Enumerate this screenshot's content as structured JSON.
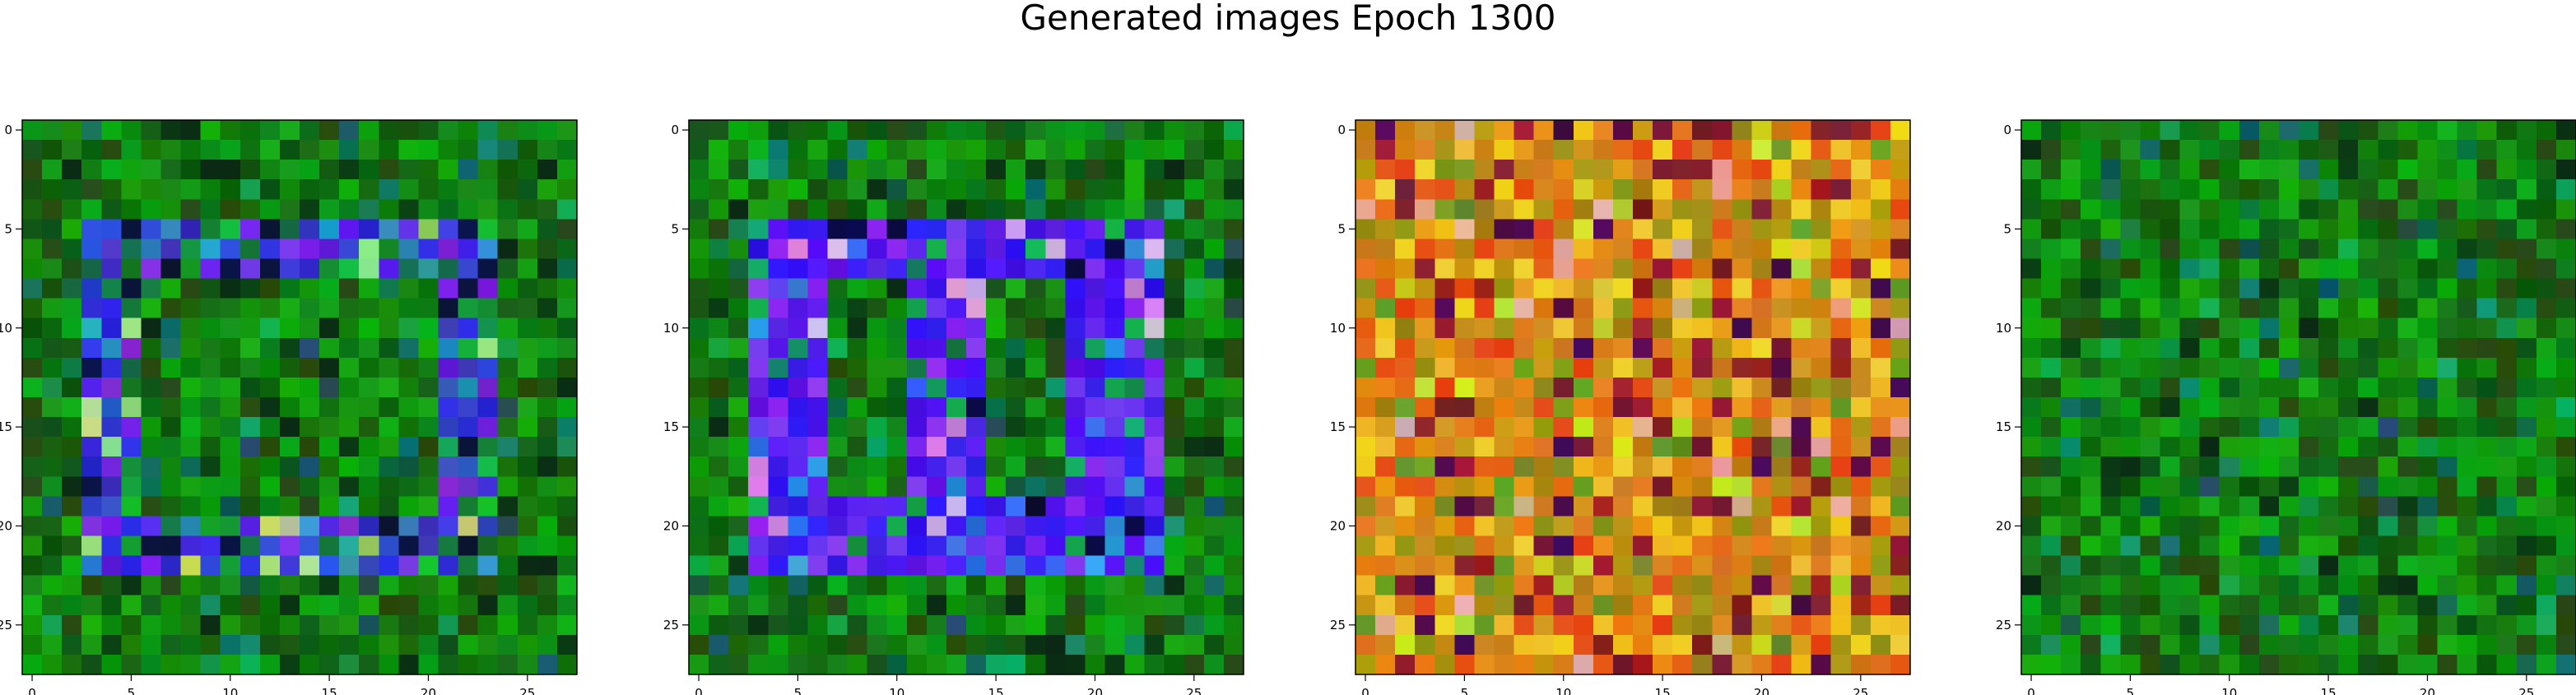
{
  "figure": {
    "title": "Generated images Epoch 1300"
  },
  "chart_data": [
    {
      "type": "heatmap",
      "image_grid": [
        28,
        28
      ],
      "xlim": [
        -0.5,
        27.5
      ],
      "ylim": [
        27.5,
        -0.5
      ],
      "x_ticks": [
        0,
        5,
        10,
        15,
        20,
        25
      ],
      "y_ticks": [
        0,
        5,
        10,
        15,
        20,
        25
      ],
      "x_tick_labels": [
        "0",
        "5",
        "10",
        "15",
        "20",
        "25"
      ],
      "y_tick_labels": [
        "0",
        "5",
        "10",
        "15",
        "20",
        "25"
      ],
      "palette": "green-blue",
      "colors": {
        "background": "#1f7a10",
        "frame": "#2a1ee0"
      },
      "pattern": "frame"
    },
    {
      "type": "heatmap",
      "image_grid": [
        28,
        28
      ],
      "xlim": [
        -0.5,
        27.5
      ],
      "ylim": [
        27.5,
        -0.5
      ],
      "x_ticks": [
        0,
        5,
        10,
        15,
        20,
        25
      ],
      "y_ticks": [
        0,
        5,
        10,
        15,
        20,
        25
      ],
      "x_tick_labels": [
        "0",
        "5",
        "10",
        "15",
        "20",
        "25"
      ],
      "y_tick_labels": [
        "0",
        "5",
        "10",
        "15",
        "20",
        "25"
      ],
      "palette": "violet-blue",
      "colors": {
        "background": "#1f7a1a",
        "frame": "#3a10f0"
      },
      "pattern": "frame-strong"
    },
    {
      "type": "heatmap",
      "image_grid": [
        28,
        28
      ],
      "xlim": [
        -0.5,
        27.5
      ],
      "ylim": [
        27.5,
        -0.5
      ],
      "x_ticks": [
        0,
        5,
        10,
        15,
        20,
        25
      ],
      "y_ticks": [
        0,
        5,
        10,
        15,
        20,
        25
      ],
      "x_tick_labels": [
        "0",
        "5",
        "10",
        "15",
        "20",
        "25"
      ],
      "y_tick_labels": [
        "0",
        "5",
        "10",
        "15",
        "20",
        "25"
      ],
      "palette": "orange-olive",
      "colors": {
        "background": "#c07a10",
        "accent": "#7a1020"
      },
      "pattern": "noise"
    },
    {
      "type": "heatmap",
      "image_grid": [
        28,
        28
      ],
      "xlim": [
        -0.5,
        27.5
      ],
      "ylim": [
        27.5,
        -0.5
      ],
      "x_ticks": [
        0,
        5,
        10,
        15,
        20,
        25
      ],
      "y_ticks": [
        0,
        5,
        10,
        15,
        20,
        25
      ],
      "x_tick_labels": [
        "0",
        "5",
        "10",
        "15",
        "20",
        "25"
      ],
      "y_tick_labels": [
        "0",
        "5",
        "10",
        "15",
        "20",
        "25"
      ],
      "palette": "green",
      "colors": {
        "background": "#1a7a12"
      },
      "pattern": "noise"
    }
  ]
}
